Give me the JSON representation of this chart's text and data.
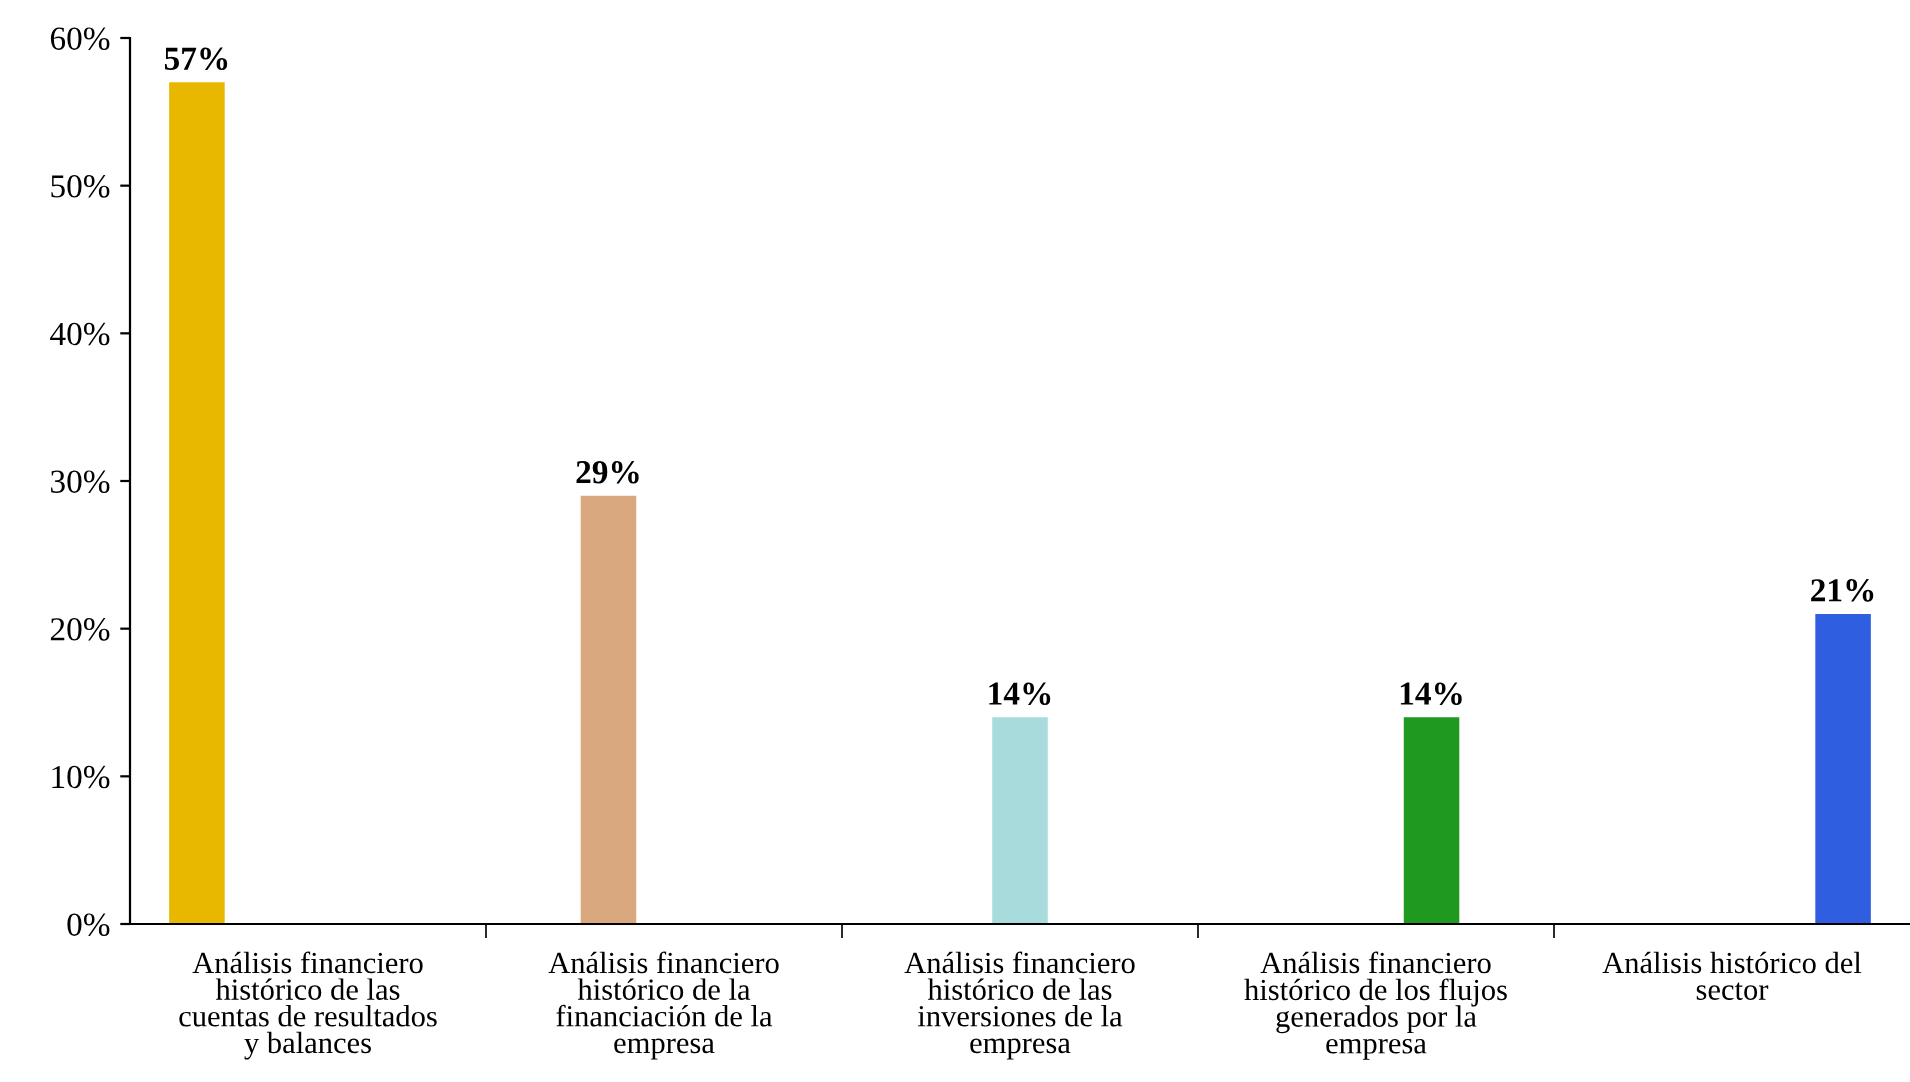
{
  "chart_data": {
    "type": "bar",
    "categories": [
      "Análisis financiero\nhistórico de las\ncuentas de resultados\ny balances",
      "Análisis financiero\nhistórico de la\nfinanciación de la\nempresa",
      "Análisis financiero\nhistórico de las\ninversiones de la\nempresa",
      "Análisis financiero\nhistórico de los flujos\ngenerados por la\nempresa",
      "Análisis histórico del\nsector"
    ],
    "series": [
      {
        "color": "#e8b800",
        "values": [
          57,
          null,
          null,
          null,
          null
        ],
        "value_labels": [
          "57%",
          null,
          null,
          null,
          null
        ]
      },
      {
        "color": "#d9a87e",
        "values": [
          null,
          29,
          null,
          null,
          null
        ],
        "value_labels": [
          null,
          "29%",
          null,
          null,
          null
        ]
      },
      {
        "color": "#a8dcdc",
        "values": [
          null,
          null,
          14,
          null,
          null
        ],
        "value_labels": [
          null,
          null,
          "14%",
          null,
          null
        ]
      },
      {
        "color": "#1f9a1f",
        "values": [
          null,
          null,
          null,
          14,
          null
        ],
        "value_labels": [
          null,
          null,
          null,
          "14%",
          null
        ]
      },
      {
        "color": "#2f5fe0",
        "values": [
          null,
          null,
          null,
          null,
          21
        ],
        "value_labels": [
          null,
          null,
          null,
          null,
          "21%"
        ]
      }
    ],
    "ylim": [
      0,
      60
    ],
    "yticks": [
      {
        "value": 0,
        "label": "0%"
      },
      {
        "value": 10,
        "label": "10%"
      },
      {
        "value": 20,
        "label": "20%"
      },
      {
        "value": 30,
        "label": "30%"
      },
      {
        "value": 40,
        "label": "40%"
      },
      {
        "value": 50,
        "label": "50%"
      },
      {
        "value": 60,
        "label": "60%"
      }
    ],
    "grid": false,
    "legend": false
  }
}
